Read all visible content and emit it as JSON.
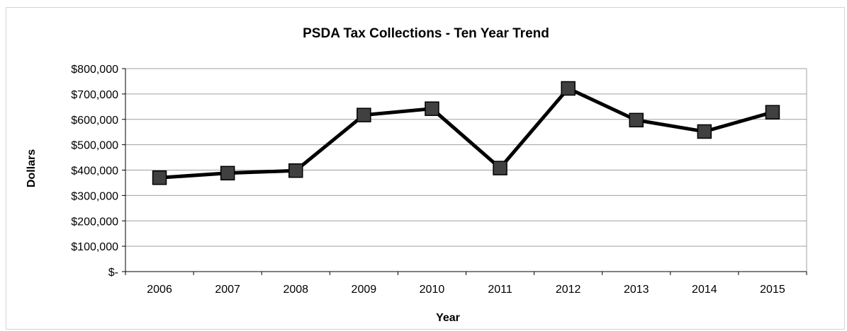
{
  "chart_data": {
    "type": "line",
    "title": "PSDA Tax Collections - Ten Year Trend",
    "xlabel": "Year",
    "ylabel": "Dollars",
    "categories": [
      "2006",
      "2007",
      "2008",
      "2009",
      "2010",
      "2011",
      "2012",
      "2013",
      "2014",
      "2015"
    ],
    "series": [
      {
        "values": [
          370000,
          388000,
          398000,
          617000,
          642000,
          408000,
          722000,
          597000,
          552000,
          628000
        ]
      }
    ],
    "ylim": [
      0,
      800000
    ],
    "yticks": [
      0,
      100000,
      200000,
      300000,
      400000,
      500000,
      600000,
      700000,
      800000
    ],
    "ytick_labels": [
      "$-",
      "$100,000",
      "$200,000",
      "$300,000",
      "$400,000",
      "$500,000",
      "$600,000",
      "$700,000",
      "$800,000"
    ],
    "grid": true,
    "legend": "none",
    "colors": {
      "line": "#000000",
      "marker_fill": "#404040",
      "marker_stroke": "#000000",
      "grid": "#a0a0a0",
      "axis": "#000000"
    }
  }
}
